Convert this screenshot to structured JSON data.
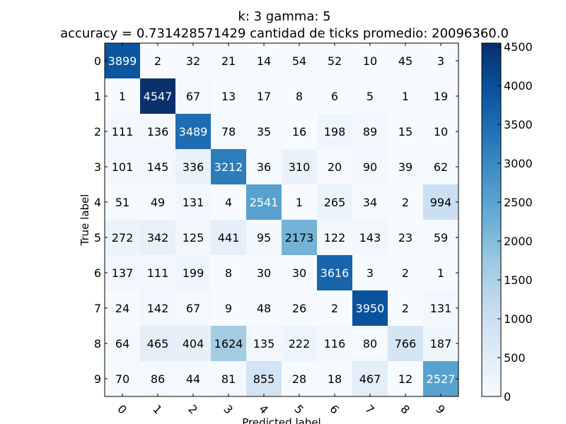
{
  "chart_data": {
    "type": "heatmap",
    "title_line1": "k: 3 gamma: 5",
    "title_line2": "accuracy = 0.731428571429 cantidad de ticks promedio: 20096360.0",
    "xlabel": "Predicted label",
    "ylabel": "True label",
    "x_categories": [
      "0",
      "1",
      "2",
      "3",
      "4",
      "5",
      "6",
      "7",
      "8",
      "9"
    ],
    "y_categories": [
      "0",
      "1",
      "2",
      "3",
      "4",
      "5",
      "6",
      "7",
      "8",
      "9"
    ],
    "x_tick_rotation": 45,
    "colormap": "Blues",
    "colorbar": {
      "min": 0,
      "max": 4547,
      "ticks": [
        0,
        500,
        1000,
        1500,
        2000,
        2500,
        3000,
        3500,
        4000,
        4500
      ]
    },
    "values": [
      [
        3899,
        2,
        32,
        21,
        14,
        54,
        52,
        10,
        45,
        3
      ],
      [
        1,
        4547,
        67,
        13,
        17,
        8,
        6,
        5,
        1,
        19
      ],
      [
        111,
        136,
        3489,
        78,
        35,
        16,
        198,
        89,
        15,
        10
      ],
      [
        101,
        145,
        336,
        3212,
        36,
        310,
        20,
        90,
        39,
        62
      ],
      [
        51,
        49,
        131,
        4,
        2541,
        1,
        265,
        34,
        2,
        994
      ],
      [
        272,
        342,
        125,
        441,
        95,
        2173,
        122,
        143,
        23,
        59
      ],
      [
        137,
        111,
        199,
        8,
        30,
        30,
        3616,
        3,
        2,
        1
      ],
      [
        24,
        142,
        67,
        9,
        48,
        26,
        2,
        3950,
        2,
        131
      ],
      [
        64,
        465,
        404,
        1624,
        135,
        222,
        116,
        80,
        766,
        187
      ],
      [
        70,
        86,
        44,
        81,
        855,
        28,
        18,
        467,
        12,
        2527
      ]
    ]
  }
}
